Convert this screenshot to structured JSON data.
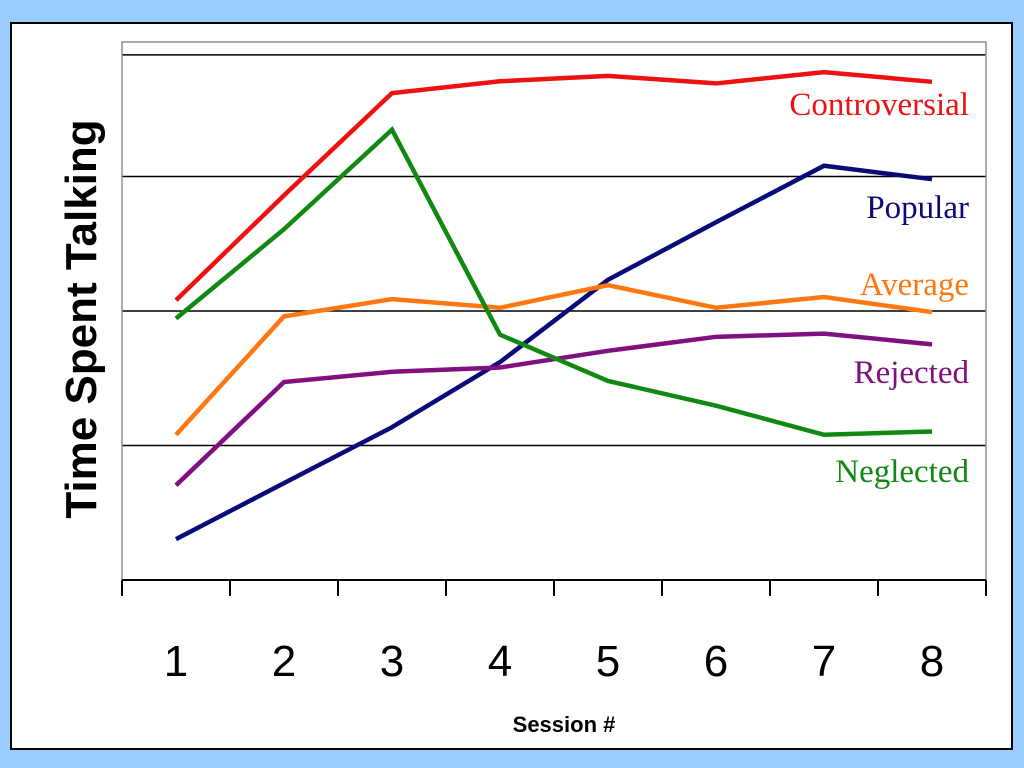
{
  "chart_data": {
    "type": "line",
    "title": "",
    "xlabel": "Session #",
    "ylabel": "Time Spent Talking",
    "categories": [
      "1",
      "2",
      "3",
      "4",
      "5",
      "6",
      "7",
      "8"
    ],
    "ylim": [
      0,
      100
    ],
    "grid": true,
    "legend": "inline-right",
    "series": [
      {
        "name": "Controversial",
        "color": "#ee1111",
        "values": [
          52.0,
          71.5,
          90.5,
          92.7,
          93.7,
          92.3,
          94.4,
          92.6
        ]
      },
      {
        "name": "Popular",
        "color": "#0a0a78",
        "values": [
          7.6,
          18.0,
          28.4,
          40.5,
          55.8,
          66.5,
          77.0,
          74.5
        ]
      },
      {
        "name": "Average",
        "color": "#ff7711",
        "values": [
          27.0,
          49.0,
          52.2,
          50.6,
          54.8,
          50.6,
          52.6,
          49.8
        ]
      },
      {
        "name": "Rejected",
        "color": "#801080",
        "values": [
          17.6,
          36.8,
          38.7,
          39.5,
          42.6,
          45.2,
          45.8,
          43.8
        ]
      },
      {
        "name": "Neglected",
        "color": "#118811",
        "values": [
          48.6,
          65.2,
          83.7,
          45.6,
          37.0,
          32.4,
          27.0,
          27.6
        ]
      }
    ]
  }
}
